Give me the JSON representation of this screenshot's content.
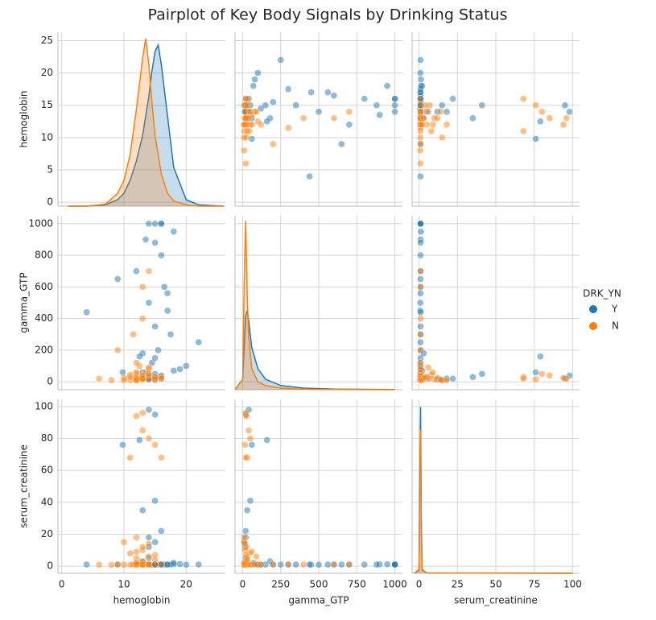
{
  "chart_data": {
    "type": "pairplot",
    "title": "Pairplot of Key Body Signals by Drinking Status",
    "legend_title": "DRK_YN",
    "variables": [
      {
        "label": "hemoglobin",
        "lim": [
          -0.6,
          26.3
        ],
        "xticks": [
          0,
          10,
          20
        ],
        "yticks": [
          0,
          5,
          10,
          15,
          20,
          25
        ],
        "kde_x": [
          1,
          4,
          7,
          9,
          10,
          11,
          12,
          13,
          13.5,
          14,
          14.5,
          15,
          15.5,
          16,
          17,
          18,
          20,
          22,
          26
        ],
        "density_lim": [
          0,
          0.27
        ]
      },
      {
        "label": "gamma_GTP",
        "lim": [
          -50,
          1050
        ],
        "xticks": [
          0,
          250,
          500,
          750,
          1000
        ],
        "yticks": [
          0,
          200,
          400,
          600,
          800,
          1000
        ],
        "kde_x": [
          -50,
          0,
          10,
          20,
          30,
          40,
          60,
          100,
          150,
          250,
          400,
          600,
          1000
        ],
        "density_lim": [
          0,
          0.033
        ]
      },
      {
        "label": "serum_creatinine",
        "lim": [
          -4.5,
          104.5
        ],
        "xticks": [
          0,
          25,
          50,
          75,
          100
        ],
        "yticks": [
          0,
          20,
          40,
          60,
          80,
          100
        ],
        "kde_x": [
          -3,
          0,
          0.5,
          1,
          1.5,
          2,
          5,
          100
        ],
        "density_lim": [
          0,
          2.3
        ]
      }
    ],
    "series": [
      {
        "name": "Y",
        "color": "#1f77b4",
        "data": [
          [
            15,
            16,
            14,
            17,
            15.5,
            13,
            18,
            16.5,
            14.5,
            15,
            12,
            19,
            16,
            15,
            14,
            17.5,
            15,
            13.5,
            16,
            20,
            22,
            4,
            9,
            15,
            16,
            14,
            17,
            15,
            18,
            13,
            14,
            15,
            16,
            13,
            15,
            14,
            9.8,
            12.5,
            15,
            14
          ],
          [
            30,
            800,
            1000,
            450,
            200,
            60,
            950,
            600,
            120,
            350,
            700,
            80,
            1000,
            25,
            500,
            300,
            150,
            900,
            40,
            100,
            250,
            440,
            650,
            880,
            1000,
            20,
            560,
            1000,
            70,
            180,
            15,
            10,
            20,
            30,
            50,
            20,
            60,
            160,
            20,
            40
          ],
          [
            1,
            1,
            1.1,
            0.9,
            1,
            1,
            1.2,
            1,
            0.8,
            1,
            1,
            1.3,
            1,
            1,
            0.9,
            1,
            1,
            1.1,
            1,
            0.9,
            1,
            1,
            1,
            1,
            1,
            5,
            1,
            1,
            2,
            3,
            12,
            15,
            22,
            35,
            41,
            18,
            76,
            79,
            95,
            98
          ]
        ],
        "kde": [
          [
            0,
            0,
            0.002,
            0.01,
            0.02,
            0.04,
            0.07,
            0.11,
            0.14,
            0.17,
            0.21,
            0.24,
            0.25,
            0.22,
            0.14,
            0.06,
            0.01,
            0.002,
            0
          ],
          [
            0,
            0.002,
            0.008,
            0.014,
            0.015,
            0.013,
            0.008,
            0.004,
            0.002,
            0.0008,
            0.0003,
            0.0001,
            3e-05
          ],
          [
            0,
            0.05,
            1.2,
            2.2,
            0.8,
            0.05,
            0.005,
            0
          ]
        ]
      },
      {
        "name": "N",
        "color": "#ff7f0e",
        "data": [
          [
            13,
            12,
            14,
            11,
            13.5,
            10,
            12.5,
            15,
            9,
            13,
            12,
            14,
            11.5,
            6,
            13,
            12,
            16,
            13,
            8,
            14,
            12,
            13,
            11,
            13,
            10,
            14,
            12,
            15,
            13,
            14,
            12,
            11,
            13,
            14,
            12,
            13,
            15,
            16,
            12,
            15
          ],
          [
            20,
            15,
            40,
            10,
            60,
            25,
            100,
            30,
            200,
            15,
            50,
            80,
            300,
            20,
            400,
            120,
            35,
            600,
            10,
            700,
            30,
            15,
            45,
            25,
            10,
            90,
            60,
            20,
            20,
            15,
            10,
            30,
            20,
            50,
            25,
            40,
            15,
            20,
            10,
            30
          ],
          [
            1,
            0.8,
            1,
            0.9,
            1,
            0.9,
            1,
            1,
            1,
            0.8,
            1,
            1,
            1,
            0.9,
            1,
            1,
            1,
            1,
            0.8,
            1,
            5,
            10,
            8,
            12,
            15,
            6,
            9,
            7,
            3,
            14,
            18,
            68,
            96,
            80,
            94,
            85,
            76,
            68,
            2,
            4
          ]
        ],
        "kde": [
          [
            0,
            0,
            0.003,
            0.02,
            0.04,
            0.08,
            0.15,
            0.23,
            0.26,
            0.22,
            0.16,
            0.11,
            0.08,
            0.05,
            0.02,
            0.008,
            0.002,
            0,
            0
          ],
          [
            0,
            0.002,
            0.02,
            0.032,
            0.018,
            0.01,
            0.004,
            0.0015,
            0.0008,
            0.0003,
            0.0001,
            3e-05,
            0
          ],
          [
            0,
            0.04,
            1.0,
            1.9,
            0.6,
            0.04,
            0.004,
            0
          ]
        ]
      }
    ],
    "grid": true
  }
}
